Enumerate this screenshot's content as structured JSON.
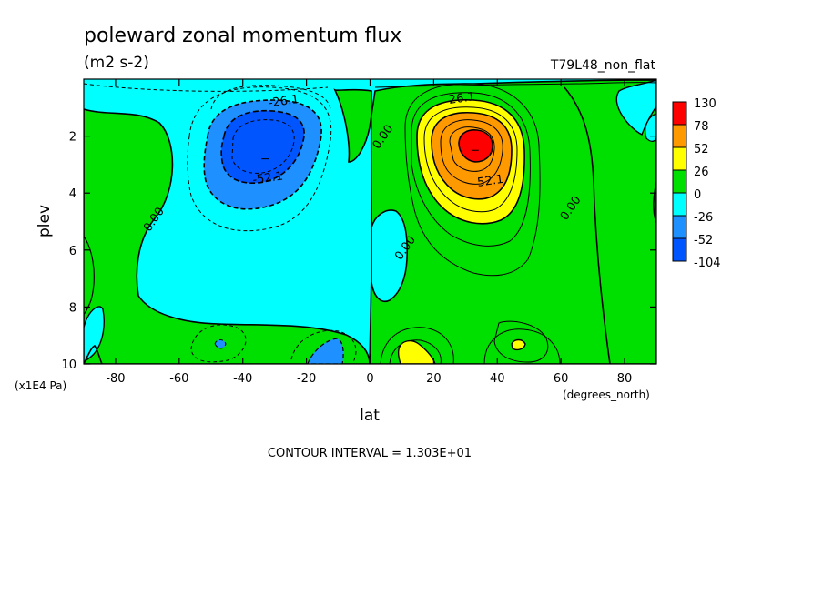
{
  "title": "poleward zonal momentum flux",
  "units": "(m2 s-2)",
  "run_label": "T79L48_non_flat",
  "contour_interval": "CONTOUR INTERVAL = 1.303E+01",
  "chart_data": {
    "type": "heatmap",
    "xlabel": "lat",
    "x_units": "(degrees_north)",
    "ylabel": "plev",
    "y_units": "(x1E4 Pa)",
    "xlim": [
      -90,
      90
    ],
    "ylim": [
      10,
      0
    ],
    "x_ticks": [
      -80,
      -60,
      -40,
      -20,
      0,
      20,
      40,
      60,
      80
    ],
    "y_ticks": [
      2,
      4,
      6,
      8,
      10
    ],
    "levels": [
      {
        "label": "130",
        "color": "#ff0000"
      },
      {
        "label": "78",
        "color": "#ff9900"
      },
      {
        "label": "52",
        "color": "#ffff00"
      },
      {
        "label": "26",
        "color": "#00e000"
      },
      {
        "label": "0",
        "color": "#00ffff"
      },
      {
        "label": "-26",
        "color": "#1e90ff"
      },
      {
        "label": "-52",
        "color": "#0055ff"
      },
      {
        "label": "-104",
        "color": ""
      }
    ],
    "features": [
      {
        "type": "min",
        "lat": -33,
        "plev": 2.8,
        "value": -65
      },
      {
        "type": "max",
        "lat": 33,
        "plev": 2.5,
        "value": 95
      }
    ],
    "contour_labels": [
      {
        "text": "-26.1",
        "lat": -27,
        "plev": 0.9
      },
      {
        "text": "-52.1",
        "lat": -32,
        "plev": 3.6
      },
      {
        "text": "26.1",
        "lat": 29,
        "plev": 0.8
      },
      {
        "text": "52.1",
        "lat": 38,
        "plev": 3.7
      },
      {
        "text": "0.00",
        "lat": -67,
        "plev": 5.0
      },
      {
        "text": "0.00",
        "lat": 5,
        "plev": 2.1
      },
      {
        "text": "0.00",
        "lat": 12,
        "plev": 6.0
      },
      {
        "text": "0.00",
        "lat": 64,
        "plev": 4.6
      }
    ]
  }
}
